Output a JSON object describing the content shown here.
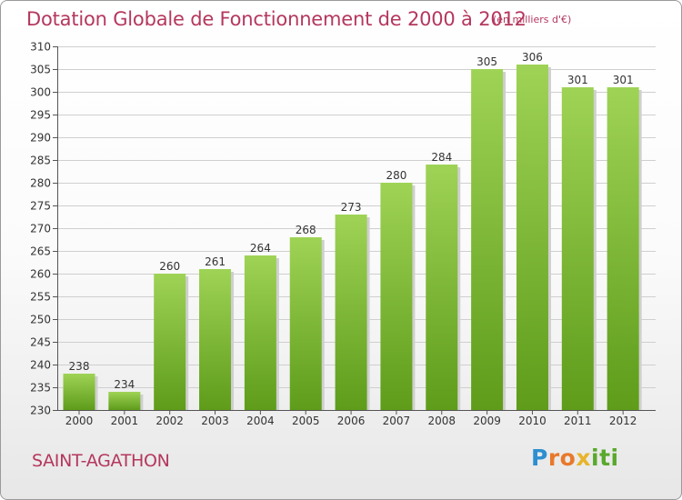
{
  "header": {
    "title": "Dotation Globale de Fonctionnement de 2000 à 2012",
    "unit": "(en milliers d'€)"
  },
  "footer": {
    "commune": "SAINT-AGATHON",
    "logo_letters": [
      "P",
      "r",
      "o",
      "x",
      "i",
      "t",
      "i"
    ],
    "logo_colors": [
      "#2e8fd0",
      "#e8792b",
      "#e8792b",
      "#e8b42b",
      "#5aa82d",
      "#5aa82d",
      "#5aa82d"
    ]
  },
  "chart_data": {
    "type": "bar",
    "categories": [
      "2000",
      "2001",
      "2002",
      "2003",
      "2004",
      "2005",
      "2006",
      "2007",
      "2008",
      "2009",
      "2010",
      "2011",
      "2012"
    ],
    "values": [
      238,
      234,
      260,
      261,
      264,
      268,
      273,
      280,
      284,
      305,
      306,
      301,
      301
    ],
    "title": "Dotation Globale de Fonctionnement de 2000 à 2012",
    "xlabel": "",
    "ylabel": "",
    "ylim": [
      230,
      310
    ],
    "yticks": [
      230,
      235,
      240,
      245,
      250,
      255,
      260,
      265,
      270,
      275,
      280,
      285,
      290,
      295,
      300,
      305,
      310
    ],
    "grid": true,
    "bar_color_top": "#9fd356",
    "bar_color_bottom": "#5e9c1a",
    "title_color": "#b5375e"
  }
}
